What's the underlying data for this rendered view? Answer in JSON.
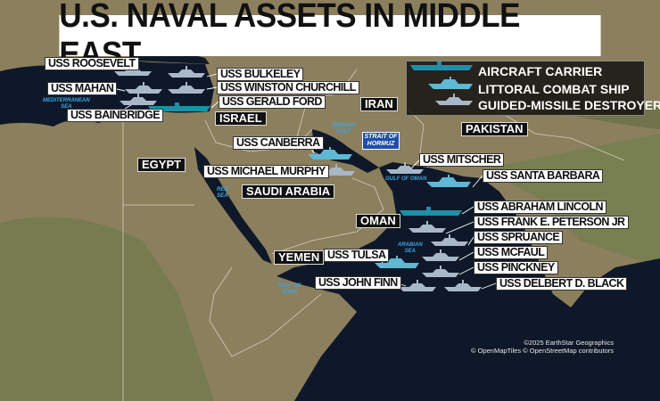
{
  "title": "U.S. NAVAL ASSETS IN MIDDLE EAST",
  "colors": {
    "sea": "#0e1828",
    "land": "#8c7f5e",
    "aircraft_carrier": "#1f8fa8",
    "littoral_combat_ship": "#5fb8d4",
    "guided_missile_destroyer": "#a9b8c8",
    "strait_label_bg": "#1c4fa8"
  },
  "legend": [
    {
      "type": "aircraft_carrier",
      "label": "AIRCRAFT CARRIER"
    },
    {
      "type": "littoral_combat_ship",
      "label": "LITTORAL COMBAT SHIP"
    },
    {
      "type": "guided_missile_destroyer",
      "label": "GUIDED-MISSILE DESTROYER"
    }
  ],
  "ships": [
    {
      "name": "USS ROOSEVELT",
      "type": "guided_missile_destroyer"
    },
    {
      "name": "USS BULKELEY",
      "type": "guided_missile_destroyer"
    },
    {
      "name": "USS MAHAN",
      "type": "guided_missile_destroyer"
    },
    {
      "name": "USS WINSTON CHURCHILL",
      "type": "guided_missile_destroyer"
    },
    {
      "name": "USS GERALD FORD",
      "type": "aircraft_carrier"
    },
    {
      "name": "USS BAINBRIDGE",
      "type": "guided_missile_destroyer"
    },
    {
      "name": "USS CANBERRA",
      "type": "littoral_combat_ship"
    },
    {
      "name": "USS MICHAEL MURPHY",
      "type": "guided_missile_destroyer"
    },
    {
      "name": "USS MITSCHER",
      "type": "guided_missile_destroyer"
    },
    {
      "name": "USS SANTA BARBARA",
      "type": "littoral_combat_ship"
    },
    {
      "name": "USS ABRAHAM LINCOLN",
      "type": "aircraft_carrier"
    },
    {
      "name": "USS FRANK E. PETERSON JR",
      "type": "guided_missile_destroyer"
    },
    {
      "name": "USS SPRUANCE",
      "type": "guided_missile_destroyer"
    },
    {
      "name": "USS MCFAUL",
      "type": "guided_missile_destroyer"
    },
    {
      "name": "USS TULSA",
      "type": "littoral_combat_ship"
    },
    {
      "name": "USS PINCKNEY",
      "type": "guided_missile_destroyer"
    },
    {
      "name": "USS JOHN FINN",
      "type": "guided_missile_destroyer"
    },
    {
      "name": "USS DELBERT D. BLACK",
      "type": "guided_missile_destroyer"
    }
  ],
  "countries": [
    "ISRAEL",
    "IRAN",
    "EGYPT",
    "SAUDI ARABIA",
    "PAKISTAN",
    "OMAN",
    "YEMEN"
  ],
  "seas": {
    "mediterranean": [
      "MEDITERRANEAN",
      "SEA"
    ],
    "persian_gulf": [
      "PERSIAN",
      "GULF"
    ],
    "red_sea": [
      "RED",
      "SEA"
    ],
    "gulf_of_oman": "GULF OF OMAN",
    "arabian_sea": [
      "ARABIAN",
      "SEA"
    ],
    "gulf_of_aden": [
      "GULF OF",
      "ADEN"
    ],
    "strait_of_hormuz": [
      "STRAIT OF",
      "HORMUZ"
    ]
  },
  "attribution": [
    "©2025 EarthStar Geographics",
    "© OpenMapTiles © OpenStreetMap contributors"
  ]
}
